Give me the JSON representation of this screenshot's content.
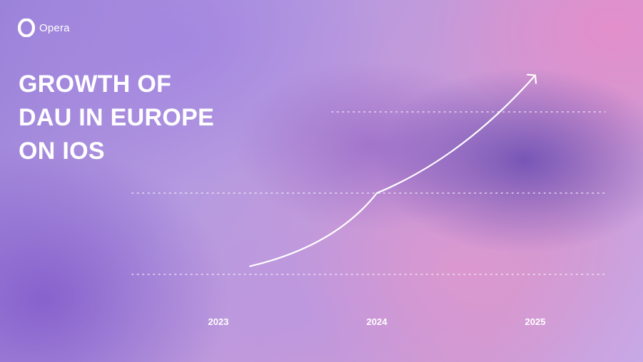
{
  "brand": {
    "name": "Opera",
    "logo_icon": "opera-o-icon",
    "colors": {
      "text": "#ffffff",
      "gridline": "#ffffff",
      "line": "#ffffff"
    }
  },
  "title_lines": [
    "GROWTH OF",
    "DAU IN EUROPE",
    "ON IOS"
  ],
  "chart_data": {
    "type": "line",
    "title": "GROWTH OF DAU IN EUROPE ON IOS",
    "categories": [
      "2023",
      "2024",
      "2025"
    ],
    "series": [
      {
        "values": [
          0.1,
          1.0,
          2.45
        ],
        "x": [
          2023.2,
          2024.0,
          2025.0
        ]
      }
    ],
    "ylim": [
      0,
      3.0
    ],
    "y_gridlines": [
      0,
      1,
      2
    ],
    "grid": true,
    "gridline_style": "dotted",
    "legend": "none",
    "end_marker": "arrow",
    "xlabel": "",
    "ylabel": ""
  }
}
